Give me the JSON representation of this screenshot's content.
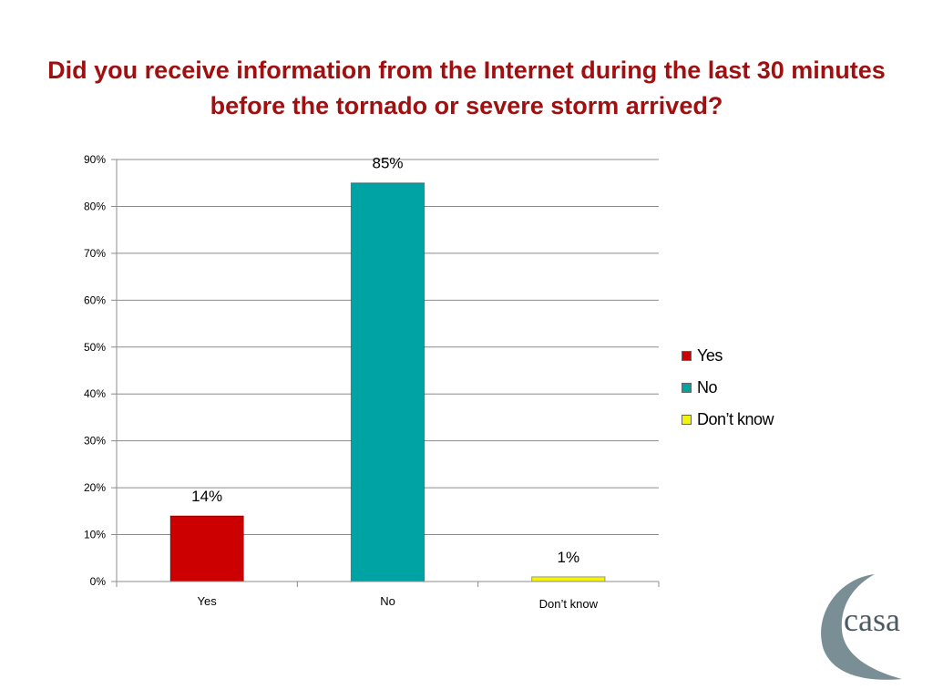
{
  "title": "Did you receive information from the Internet during the last 30 minutes before the tornado or severe storm arrived?",
  "chart_data": {
    "type": "bar",
    "categories": [
      "Yes",
      "No",
      "Don’t know"
    ],
    "values": [
      14,
      85,
      1
    ],
    "data_labels": [
      "14%",
      "85%",
      "1%"
    ],
    "colors": [
      "#cc0000",
      "#00a3a3",
      "#f2f20a"
    ],
    "ylim": [
      0,
      90
    ],
    "yticks": [
      0,
      10,
      20,
      30,
      40,
      50,
      60,
      70,
      80,
      90
    ],
    "ytick_labels": [
      "0%",
      "10%",
      "20%",
      "30%",
      "40%",
      "50%",
      "60%",
      "70%",
      "80%",
      "90%"
    ],
    "xlabel": "",
    "ylabel": "",
    "grid": true,
    "legend": {
      "placement": "right",
      "entries": [
        "Yes",
        "No",
        "Don’t know"
      ]
    }
  },
  "logo": {
    "text": "casa",
    "color": "#7a8e95"
  }
}
